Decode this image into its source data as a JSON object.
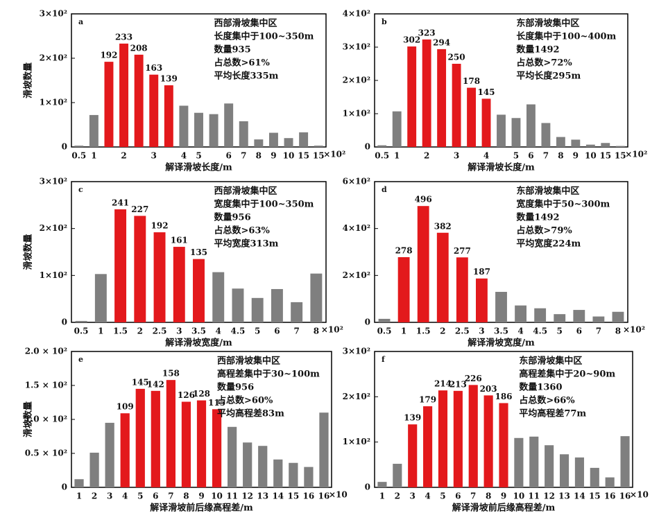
{
  "chart_data": [
    {
      "type": "bar",
      "panel": "a",
      "ylabel": "滑坡数量",
      "xlabel": "解译滑坡长度/m",
      "x_unit": "×10²",
      "annotation": [
        "西部滑坡集中区",
        "长度集中于100~350m",
        "数量935",
        "占总数>61%",
        "平均长度335m"
      ],
      "categories": [
        "0.5",
        "1",
        null,
        "2",
        null,
        "3",
        null,
        "4",
        "5",
        null,
        "6",
        "7",
        "8",
        "9",
        "10",
        "15",
        "15"
      ],
      "values": [
        3,
        72,
        192,
        233,
        208,
        163,
        139,
        93,
        77,
        74,
        98,
        58,
        17,
        32,
        20,
        33,
        3
      ],
      "labeled": [
        false,
        false,
        true,
        true,
        true,
        true,
        true,
        false,
        false,
        false,
        false,
        false,
        false,
        false,
        false,
        false,
        false
      ],
      "colors": [
        "#7f7f7f",
        "#7f7f7f",
        "#e3191c",
        "#e3191c",
        "#e3191c",
        "#e3191c",
        "#e3191c",
        "#7f7f7f",
        "#7f7f7f",
        "#7f7f7f",
        "#7f7f7f",
        "#7f7f7f",
        "#7f7f7f",
        "#7f7f7f",
        "#7f7f7f",
        "#7f7f7f",
        "#7f7f7f"
      ],
      "ylim": [
        0,
        300
      ],
      "yticks": [
        0,
        {
          "value": 100,
          "label": "1×10²"
        },
        {
          "value": 200,
          "label": "2×10²"
        },
        {
          "value": 300,
          "label": "3×10²"
        }
      ]
    },
    {
      "type": "bar",
      "panel": "b",
      "xlabel": "解译滑坡长度/m",
      "x_unit": "×10²",
      "annotation": [
        "东部滑坡集中区",
        "长度集中于100~400m",
        "数量1492",
        "占总数>72%",
        "平均长度295m"
      ],
      "categories": [
        "0.5",
        "1",
        null,
        "2",
        null,
        "3",
        null,
        "4",
        null,
        "5",
        "6",
        "7",
        "8",
        "9",
        "10",
        "15",
        "15"
      ],
      "values": [
        5,
        107,
        302,
        323,
        294,
        250,
        178,
        145,
        97,
        87,
        128,
        72,
        30,
        22,
        7,
        12,
        3
      ],
      "labeled": [
        false,
        false,
        true,
        true,
        true,
        true,
        true,
        true,
        false,
        false,
        false,
        false,
        false,
        false,
        false,
        false,
        false
      ],
      "colors": [
        "#7f7f7f",
        "#7f7f7f",
        "#e3191c",
        "#e3191c",
        "#e3191c",
        "#e3191c",
        "#e3191c",
        "#e3191c",
        "#7f7f7f",
        "#7f7f7f",
        "#7f7f7f",
        "#7f7f7f",
        "#7f7f7f",
        "#7f7f7f",
        "#7f7f7f",
        "#7f7f7f",
        "#7f7f7f"
      ],
      "ylim": [
        0,
        400
      ],
      "yticks": [
        0,
        {
          "value": 100,
          "label": "1×10²"
        },
        {
          "value": 200,
          "label": "2×10²"
        },
        {
          "value": 300,
          "label": "3×10²"
        },
        {
          "value": 400,
          "label": "4×10²"
        }
      ]
    },
    {
      "type": "bar",
      "panel": "c",
      "ylabel": "滑坡数量",
      "xlabel": "解译滑坡宽度/m",
      "x_unit": "×10²",
      "annotation": [
        "西部滑坡集中区",
        "宽度集中于100~350m",
        "数量956",
        "占总数>63%",
        "平均宽度313m"
      ],
      "categories": [
        "0.5",
        "1",
        "1.5",
        "2",
        "2.5",
        "3",
        "3.5",
        "4",
        "4.5",
        "5",
        "6",
        "7",
        "8"
      ],
      "values": [
        3,
        103,
        241,
        227,
        192,
        161,
        135,
        107,
        72,
        52,
        71,
        43,
        104
      ],
      "labeled": [
        false,
        false,
        true,
        true,
        true,
        true,
        true,
        false,
        false,
        false,
        false,
        false,
        false
      ],
      "colors": [
        "#7f7f7f",
        "#7f7f7f",
        "#e3191c",
        "#e3191c",
        "#e3191c",
        "#e3191c",
        "#e3191c",
        "#7f7f7f",
        "#7f7f7f",
        "#7f7f7f",
        "#7f7f7f",
        "#7f7f7f",
        "#7f7f7f"
      ],
      "ylim": [
        0,
        300
      ],
      "yticks": [
        0,
        {
          "value": 100,
          "label": "1×10²"
        },
        {
          "value": 200,
          "label": "2×10²"
        },
        {
          "value": 300,
          "label": "3×10²"
        }
      ]
    },
    {
      "type": "bar",
      "panel": "d",
      "xlabel": "解译滑坡宽度/m",
      "x_unit": "×10²",
      "annotation": [
        "东部滑坡集中区",
        "宽度集中于50~300m",
        "数量1492",
        "占总数>79%",
        "平均宽度224m"
      ],
      "categories": [
        "0.5",
        "1",
        "1.5",
        "2",
        "2.5",
        "3",
        "3.5",
        "4",
        "4.5",
        "5",
        "6",
        "7",
        "8"
      ],
      "values": [
        15,
        278,
        496,
        382,
        277,
        187,
        130,
        72,
        60,
        35,
        53,
        25,
        45
      ],
      "labeled": [
        false,
        true,
        true,
        true,
        true,
        true,
        false,
        false,
        false,
        false,
        false,
        false,
        false
      ],
      "colors": [
        "#7f7f7f",
        "#e3191c",
        "#e3191c",
        "#e3191c",
        "#e3191c",
        "#e3191c",
        "#7f7f7f",
        "#7f7f7f",
        "#7f7f7f",
        "#7f7f7f",
        "#7f7f7f",
        "#7f7f7f",
        "#7f7f7f"
      ],
      "ylim": [
        0,
        600
      ],
      "yticks": [
        0,
        {
          "value": 200,
          "label": "2×10²"
        },
        {
          "value": 400,
          "label": "4×10²"
        },
        {
          "value": 600,
          "label": "6×10²"
        }
      ]
    },
    {
      "type": "bar",
      "panel": "e",
      "ylabel": "滑坡数量",
      "xlabel": "解译滑坡前后缘高程差/m",
      "x_unit": "×10",
      "annotation": [
        "西部滑坡集中区",
        "高程差集中于30~100m",
        "数量956",
        "占总数>60%",
        "平均高程差83m"
      ],
      "categories": [
        "1",
        "2",
        "3",
        "4",
        "5",
        "6",
        "7",
        "8",
        "9",
        "10",
        "11",
        "12",
        "13",
        "14",
        "15",
        "16",
        "16"
      ],
      "values": [
        12,
        51,
        95,
        109,
        145,
        142,
        158,
        126,
        128,
        115,
        89,
        66,
        61,
        41,
        36,
        30,
        110
      ],
      "labeled": [
        false,
        false,
        false,
        true,
        true,
        true,
        true,
        true,
        true,
        true,
        false,
        false,
        false,
        false,
        false,
        false,
        false
      ],
      "colors": [
        "#7f7f7f",
        "#7f7f7f",
        "#7f7f7f",
        "#e3191c",
        "#e3191c",
        "#e3191c",
        "#e3191c",
        "#e3191c",
        "#e3191c",
        "#e3191c",
        "#7f7f7f",
        "#7f7f7f",
        "#7f7f7f",
        "#7f7f7f",
        "#7f7f7f",
        "#7f7f7f",
        "#7f7f7f"
      ],
      "ylim": [
        0,
        200
      ],
      "yticks": [
        0,
        {
          "value": 50,
          "label": "0.5 × 10²"
        },
        {
          "value": 100,
          "label": "1.0 × 10²"
        },
        {
          "value": 150,
          "label": "1.5 × 10²"
        },
        {
          "value": 200,
          "label": "2.0 × 10²"
        }
      ]
    },
    {
      "type": "bar",
      "panel": "f",
      "xlabel": "解译滑坡前后缘高程差/m",
      "x_unit": "×10",
      "annotation": [
        "东部滑坡集中区",
        "高程差集中于20~90m",
        "数量1360",
        "占总数>66%",
        "平均高程差77m"
      ],
      "categories": [
        "1",
        "2",
        "3",
        "4",
        "5",
        "6",
        "7",
        "8",
        "9",
        "10",
        "11",
        "12",
        "13",
        "14",
        "15",
        "16",
        "16"
      ],
      "values": [
        12,
        52,
        139,
        179,
        214,
        213,
        226,
        203,
        186,
        109,
        112,
        93,
        73,
        66,
        43,
        22,
        113
      ],
      "labeled": [
        false,
        false,
        true,
        true,
        true,
        true,
        true,
        true,
        true,
        false,
        false,
        false,
        false,
        false,
        false,
        false,
        false
      ],
      "colors": [
        "#7f7f7f",
        "#7f7f7f",
        "#e3191c",
        "#e3191c",
        "#e3191c",
        "#e3191c",
        "#e3191c",
        "#e3191c",
        "#e3191c",
        "#7f7f7f",
        "#7f7f7f",
        "#7f7f7f",
        "#7f7f7f",
        "#7f7f7f",
        "#7f7f7f",
        "#7f7f7f",
        "#7f7f7f"
      ],
      "ylim": [
        0,
        300
      ],
      "yticks": [
        0,
        {
          "value": 100,
          "label": "1×10²"
        },
        {
          "value": 200,
          "label": "2×10²"
        },
        {
          "value": 300,
          "label": "3×10²"
        }
      ]
    }
  ]
}
